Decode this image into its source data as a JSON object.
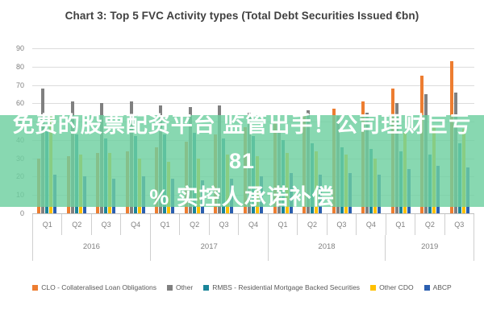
{
  "title": "Chart 3: Top 5 FVC Activity types (Total Debt Securities Issued €bn)",
  "overlay": {
    "line1": "免费的股票配资平台 监管出手！公司理财巨亏81",
    "line2": "% 实控人承诺补偿",
    "band_color": "rgba(110,208,160,0.82)",
    "text_color": "#ffffff"
  },
  "chart_data": {
    "type": "bar",
    "title": "Chart 3: Top 5 FVC Activity types (Total Debt Securities Issued €bn)",
    "categories": [
      "Q1",
      "Q2",
      "Q3",
      "Q4",
      "Q1",
      "Q2",
      "Q3",
      "Q4",
      "Q1",
      "Q2",
      "Q3",
      "Q4",
      "Q1",
      "Q2",
      "Q3"
    ],
    "year_groups": [
      {
        "label": "2016",
        "quarters": 4
      },
      {
        "label": "2017",
        "quarters": 4
      },
      {
        "label": "2018",
        "quarters": 4
      },
      {
        "label": "2019",
        "quarters": 3
      }
    ],
    "series": [
      {
        "name": "CLO - Collateralised Loan Obligations",
        "color": "#ED7D31",
        "values": [
          30,
          31,
          33,
          34,
          36,
          39,
          43,
          47,
          50,
          54,
          57,
          61,
          68,
          75,
          83
        ]
      },
      {
        "name": "Other",
        "color": "#808080",
        "values": [
          68,
          61,
          60,
          61,
          59,
          58,
          59,
          55,
          52,
          56,
          53,
          55,
          60,
          65,
          66
        ]
      },
      {
        "name": "RMBS - Residential Mortgage Backed Securities",
        "color": "#1A8599",
        "values": [
          45,
          43,
          41,
          42,
          43,
          44,
          41,
          42,
          40,
          38,
          36,
          35,
          34,
          32,
          38
        ]
      },
      {
        "name": "Other CDO",
        "color": "#FFC000",
        "values": [
          54,
          32,
          33,
          30,
          28,
          30,
          32,
          31,
          33,
          34,
          32,
          30,
          44,
          48,
          46
        ]
      },
      {
        "name": "ABCP",
        "color": "#2B5FB0",
        "values": [
          21,
          20,
          19,
          20,
          19,
          18,
          19,
          20,
          22,
          21,
          22,
          21,
          24,
          26,
          25
        ]
      }
    ],
    "xlabel": "",
    "ylabel": "",
    "ylim": [
      0,
      90
    ],
    "ytick_step": 10,
    "grid": true,
    "legend_position": "bottom"
  }
}
